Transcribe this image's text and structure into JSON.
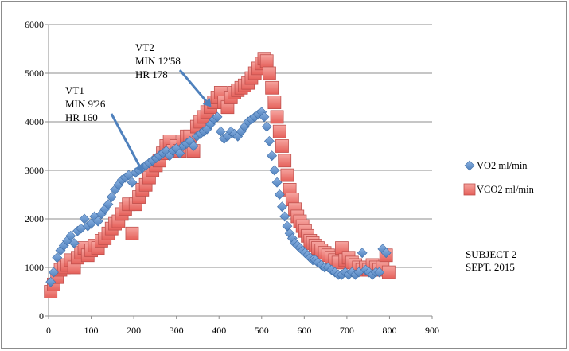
{
  "chart_data": {
    "type": "scatter",
    "title": "",
    "xlabel": "",
    "ylabel": "",
    "xlim": [
      0,
      900
    ],
    "ylim": [
      0,
      6000
    ],
    "xticks": [
      0,
      100,
      200,
      300,
      400,
      500,
      600,
      700,
      800,
      900
    ],
    "yticks": [
      0,
      1000,
      2000,
      3000,
      4000,
      5000,
      6000
    ],
    "grid": "horizontal",
    "legend_position": "right",
    "series": [
      {
        "name": "VO2 ml/min",
        "marker": "diamond",
        "color": "#4f81bd",
        "x": [
          5,
          12,
          20,
          28,
          36,
          44,
          52,
          60,
          68,
          76,
          84,
          92,
          100,
          108,
          116,
          124,
          132,
          140,
          148,
          156,
          164,
          172,
          180,
          188,
          196,
          204,
          212,
          220,
          228,
          236,
          244,
          252,
          260,
          268,
          276,
          284,
          292,
          300,
          308,
          316,
          324,
          332,
          340,
          348,
          356,
          364,
          372,
          380,
          388,
          396,
          404,
          412,
          420,
          428,
          436,
          444,
          452,
          460,
          468,
          476,
          484,
          492,
          500,
          506,
          512,
          518,
          524,
          530,
          536,
          542,
          548,
          554,
          560,
          566,
          572,
          578,
          584,
          590,
          596,
          602,
          608,
          614,
          620,
          626,
          632,
          640,
          648,
          656,
          664,
          672,
          680,
          688,
          696,
          704,
          712,
          720,
          728,
          736,
          744,
          752,
          760,
          768,
          776,
          784,
          792
        ],
        "y": [
          700,
          900,
          1200,
          1350,
          1450,
          1550,
          1650,
          1500,
          1750,
          1800,
          2000,
          1850,
          1900,
          2050,
          1950,
          2100,
          2200,
          2300,
          2450,
          2600,
          2700,
          2800,
          2850,
          2900,
          2750,
          2950,
          3000,
          3050,
          3100,
          3150,
          3200,
          3250,
          3300,
          3350,
          3400,
          3300,
          3400,
          3450,
          3350,
          3500,
          3550,
          3600,
          3500,
          3700,
          3750,
          3800,
          3850,
          3950,
          4050,
          4100,
          3800,
          3650,
          3700,
          3800,
          3750,
          3700,
          3800,
          3900,
          4000,
          4050,
          4100,
          4150,
          4200,
          4100,
          3900,
          3600,
          3300,
          3000,
          2750,
          2500,
          2250,
          2050,
          1850,
          1700,
          1600,
          1500,
          1450,
          1400,
          1350,
          1300,
          1250,
          1200,
          1150,
          1150,
          1100,
          1050,
          1000,
          1000,
          950,
          900,
          850,
          850,
          900,
          850,
          900,
          850,
          900,
          1300,
          950,
          900,
          850,
          900,
          900,
          1380,
          1300
        ]
      },
      {
        "name": "VCO2 ml/min",
        "marker": "square",
        "color": "#e5726b",
        "x": [
          5,
          12,
          20,
          28,
          36,
          44,
          52,
          60,
          68,
          76,
          84,
          92,
          100,
          108,
          116,
          124,
          132,
          140,
          148,
          156,
          164,
          172,
          180,
          188,
          196,
          204,
          212,
          220,
          228,
          236,
          244,
          252,
          260,
          268,
          276,
          284,
          292,
          300,
          308,
          316,
          324,
          332,
          340,
          348,
          356,
          364,
          372,
          380,
          388,
          396,
          404,
          412,
          420,
          428,
          436,
          444,
          452,
          460,
          468,
          476,
          484,
          492,
          500,
          506,
          512,
          518,
          524,
          530,
          536,
          542,
          548,
          554,
          560,
          566,
          572,
          578,
          584,
          590,
          596,
          602,
          608,
          614,
          620,
          626,
          632,
          640,
          648,
          656,
          664,
          672,
          680,
          688,
          696,
          704,
          712,
          720,
          728,
          736,
          744,
          752,
          760,
          768,
          776,
          784,
          792,
          798
        ],
        "y": [
          500,
          650,
          800,
          950,
          1000,
          1050,
          1150,
          1000,
          1200,
          1300,
          1400,
          1250,
          1350,
          1450,
          1400,
          1550,
          1600,
          1700,
          1800,
          1900,
          1950,
          2100,
          2200,
          2300,
          1700,
          2300,
          2450,
          2600,
          2700,
          2850,
          3000,
          3100,
          3200,
          3350,
          3500,
          3600,
          3400,
          3500,
          3400,
          3600,
          3700,
          3700,
          3400,
          3900,
          4000,
          4100,
          4200,
          4300,
          4400,
          4500,
          4600,
          4400,
          4300,
          4500,
          4600,
          4650,
          4700,
          4750,
          4800,
          4900,
          5000,
          5100,
          5200,
          5300,
          5250,
          5000,
          4700,
          4400,
          4100,
          3800,
          3500,
          3200,
          2900,
          2600,
          2400,
          2200,
          2050,
          1950,
          1850,
          1750,
          1650,
          1550,
          1500,
          1450,
          1400,
          1350,
          1300,
          1250,
          1200,
          1150,
          1100,
          1400,
          1150,
          1200,
          1100,
          1050,
          1000,
          950,
          1000,
          950,
          1050,
          1000,
          950,
          1000,
          1250,
          900
        ]
      }
    ],
    "annotations": [
      {
        "lines": [
          "VT1",
          "MIN 9'26",
          "HR 160"
        ],
        "arrow_to": [
          222,
          2950
        ]
      },
      {
        "lines": [
          "VT2",
          "MIN 12'58",
          "HR 178"
        ],
        "arrow_to": [
          382,
          4300
        ]
      }
    ],
    "note": [
      "SUBJECT 2",
      "SEPT. 2015"
    ]
  }
}
